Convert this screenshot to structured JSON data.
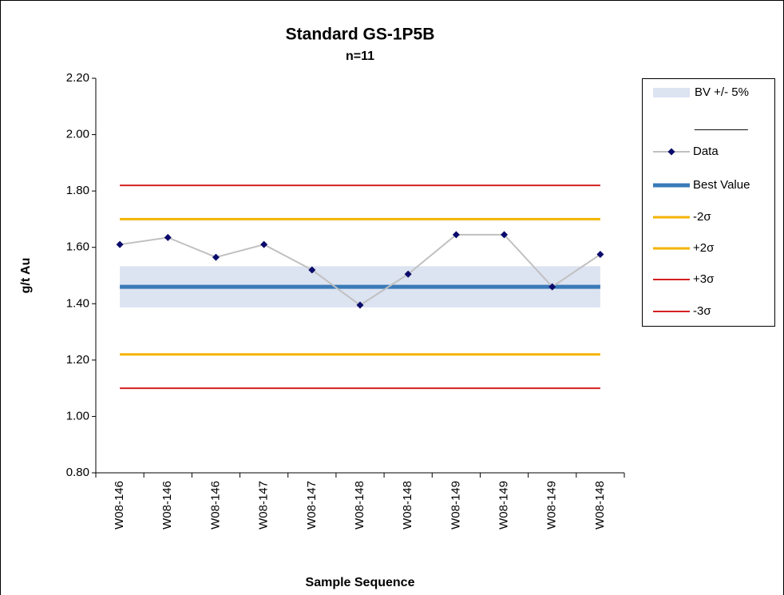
{
  "chart_data": {
    "type": "control",
    "title": "Standard GS-1P5B",
    "subtitle": "n=11",
    "x_label": "Sample Sequence",
    "y_label": "g/t Au",
    "categories": [
      "W08-146",
      "W08-146",
      "W08-146",
      "W08-147",
      "W08-147",
      "W08-148",
      "W08-148",
      "W08-149",
      "W08-149",
      "W08-149",
      "W08-148"
    ],
    "ylim": [
      0.8,
      2.2
    ],
    "yticks": [
      {
        "value": 0.8,
        "label": "0.80"
      },
      {
        "value": 1.0,
        "label": "1.00"
      },
      {
        "value": 1.2,
        "label": "1.20"
      },
      {
        "value": 1.4,
        "label": "1.40"
      },
      {
        "value": 1.6,
        "label": "1.60"
      },
      {
        "value": 1.8,
        "label": "1.80"
      },
      {
        "value": 2.0,
        "label": "2.00"
      },
      {
        "value": 2.2,
        "label": "2.20"
      }
    ],
    "band": {
      "name": "BV +/- 5%",
      "color": "#dce3f1",
      "low": 1.387,
      "high": 1.533
    },
    "legend_separator": "________",
    "series": [
      {
        "name": "Data",
        "kind": "data",
        "color": "#c0c0c0",
        "marker_color": "#0b0b6b",
        "values": [
          1.61,
          1.635,
          1.565,
          1.61,
          1.52,
          1.395,
          1.505,
          1.645,
          1.645,
          1.46,
          1.575
        ]
      },
      {
        "name": "Best Value",
        "kind": "limit",
        "color": "#3a7ab8",
        "width": 5,
        "value": 1.46
      },
      {
        "name": "-2σ",
        "kind": "limit",
        "color": "#f4b400",
        "width": 3,
        "value": 1.22
      },
      {
        "name": "+2σ",
        "kind": "limit",
        "color": "#f4b400",
        "width": 3,
        "value": 1.7
      },
      {
        "name": "+3σ",
        "kind": "limit",
        "color": "#d42020",
        "width": 2,
        "value": 1.82
      },
      {
        "name": "-3σ",
        "kind": "limit",
        "color": "#d42020",
        "width": 2,
        "value": 1.1
      }
    ],
    "legend": "right"
  }
}
